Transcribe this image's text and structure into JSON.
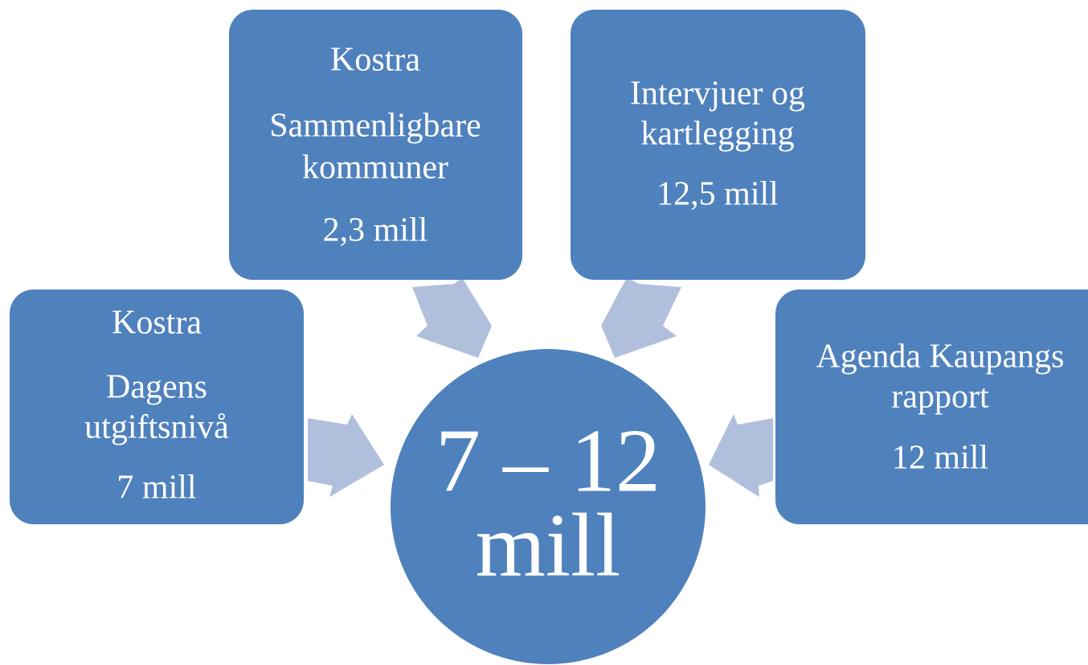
{
  "nodes": [
    {
      "lines": [
        "Kostra",
        "Dagens",
        "utgiftsnivå",
        "7 mill"
      ]
    },
    {
      "lines": [
        "Kostra",
        "Sammenligbare",
        "kommuner",
        "2,3 mill"
      ]
    },
    {
      "lines": [
        "Intervjuer og",
        "kartlegging",
        "12,5 mill"
      ]
    },
    {
      "lines": [
        "Agenda Kaupangs",
        "rapport",
        "12 mill"
      ]
    }
  ],
  "center": {
    "lines": [
      "7 – 12",
      "mill"
    ]
  }
}
